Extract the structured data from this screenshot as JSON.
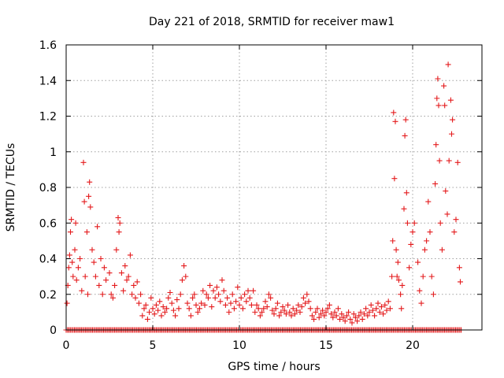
{
  "chart_data": {
    "type": "scatter",
    "title": "Day 221 of 2018, SRMTID for receiver maw1",
    "xlabel": "GPS time / hours",
    "ylabel": "SRMTID / TECUs",
    "xlim": [
      0,
      24
    ],
    "ylim": [
      0,
      1.6
    ],
    "x_ticks": [
      0,
      5,
      10,
      15,
      20
    ],
    "x_tick_labels": [
      "0",
      "5",
      "10",
      "15",
      "20"
    ],
    "y_ticks": [
      0,
      0.2,
      0.4,
      0.6,
      0.8,
      1,
      1.2,
      1.4,
      1.6
    ],
    "y_tick_labels": [
      "0",
      "0.2",
      "0.4",
      "0.6",
      "0.8",
      "1",
      "1.2",
      "1.4",
      "1.6"
    ],
    "grid": true,
    "marker": "plus",
    "series_color": "#e41a1c",
    "series": [
      {
        "name": "SRMTID",
        "note": "approximate sampled points read off the plot",
        "points": [
          [
            0.05,
            0.15
          ],
          [
            0.1,
            0.25
          ],
          [
            0.15,
            0.35
          ],
          [
            0.2,
            0.42
          ],
          [
            0.25,
            0.55
          ],
          [
            0.3,
            0.62
          ],
          [
            0.35,
            0.38
          ],
          [
            0.4,
            0.3
          ],
          [
            0.5,
            0.45
          ],
          [
            0.55,
            0.6
          ],
          [
            0.6,
            0.28
          ],
          [
            0.7,
            0.35
          ],
          [
            0.8,
            0.4
          ],
          [
            0.9,
            0.22
          ],
          [
            1.0,
            0.94
          ],
          [
            1.05,
            0.72
          ],
          [
            1.1,
            0.3
          ],
          [
            1.2,
            0.55
          ],
          [
            1.25,
            0.2
          ],
          [
            1.3,
            0.75
          ],
          [
            1.35,
            0.83
          ],
          [
            1.4,
            0.69
          ],
          [
            1.5,
            0.45
          ],
          [
            1.6,
            0.38
          ],
          [
            1.7,
            0.3
          ],
          [
            1.8,
            0.58
          ],
          [
            1.9,
            0.25
          ],
          [
            2.0,
            0.4
          ],
          [
            2.1,
            0.2
          ],
          [
            2.2,
            0.35
          ],
          [
            2.3,
            0.28
          ],
          [
            2.5,
            0.32
          ],
          [
            2.6,
            0.2
          ],
          [
            2.7,
            0.18
          ],
          [
            2.8,
            0.25
          ],
          [
            2.9,
            0.45
          ],
          [
            3.0,
            0.63
          ],
          [
            3.05,
            0.55
          ],
          [
            3.1,
            0.6
          ],
          [
            3.2,
            0.32
          ],
          [
            3.3,
            0.22
          ],
          [
            3.4,
            0.36
          ],
          [
            3.5,
            0.28
          ],
          [
            3.6,
            0.3
          ],
          [
            3.7,
            0.42
          ],
          [
            3.8,
            0.2
          ],
          [
            3.9,
            0.25
          ],
          [
            4.0,
            0.18
          ],
          [
            4.1,
            0.27
          ],
          [
            4.2,
            0.15
          ],
          [
            4.3,
            0.2
          ],
          [
            4.4,
            0.08
          ],
          [
            4.5,
            0.12
          ],
          [
            4.6,
            0.14
          ],
          [
            4.7,
            0.06
          ],
          [
            4.8,
            0.1
          ],
          [
            4.9,
            0.18
          ],
          [
            5.0,
            0.12
          ],
          [
            5.1,
            0.09
          ],
          [
            5.2,
            0.14
          ],
          [
            5.3,
            0.11
          ],
          [
            5.4,
            0.16
          ],
          [
            5.5,
            0.08
          ],
          [
            5.6,
            0.13
          ],
          [
            5.7,
            0.1
          ],
          [
            5.8,
            0.12
          ],
          [
            5.9,
            0.18
          ],
          [
            6.0,
            0.21
          ],
          [
            6.1,
            0.15
          ],
          [
            6.2,
            0.11
          ],
          [
            6.3,
            0.08
          ],
          [
            6.4,
            0.17
          ],
          [
            6.5,
            0.12
          ],
          [
            6.6,
            0.2
          ],
          [
            6.7,
            0.28
          ],
          [
            6.8,
            0.36
          ],
          [
            6.9,
            0.3
          ],
          [
            7.0,
            0.15
          ],
          [
            7.1,
            0.12
          ],
          [
            7.2,
            0.08
          ],
          [
            7.3,
            0.18
          ],
          [
            7.4,
            0.2
          ],
          [
            7.5,
            0.14
          ],
          [
            7.6,
            0.1
          ],
          [
            7.7,
            0.12
          ],
          [
            7.8,
            0.15
          ],
          [
            7.9,
            0.22
          ],
          [
            8.0,
            0.14
          ],
          [
            8.1,
            0.2
          ],
          [
            8.2,
            0.18
          ],
          [
            8.3,
            0.25
          ],
          [
            8.4,
            0.13
          ],
          [
            8.5,
            0.22
          ],
          [
            8.6,
            0.18
          ],
          [
            8.7,
            0.24
          ],
          [
            8.8,
            0.2
          ],
          [
            8.9,
            0.16
          ],
          [
            9.0,
            0.28
          ],
          [
            9.1,
            0.22
          ],
          [
            9.2,
            0.14
          ],
          [
            9.3,
            0.18
          ],
          [
            9.4,
            0.1
          ],
          [
            9.5,
            0.15
          ],
          [
            9.6,
            0.2
          ],
          [
            9.7,
            0.12
          ],
          [
            9.8,
            0.16
          ],
          [
            9.9,
            0.24
          ],
          [
            10.0,
            0.14
          ],
          [
            10.1,
            0.18
          ],
          [
            10.2,
            0.12
          ],
          [
            10.3,
            0.2
          ],
          [
            10.4,
            0.16
          ],
          [
            10.5,
            0.22
          ],
          [
            10.6,
            0.18
          ],
          [
            10.7,
            0.14
          ],
          [
            10.8,
            0.22
          ],
          [
            10.9,
            0.1
          ],
          [
            11.0,
            0.14
          ],
          [
            11.1,
            0.12
          ],
          [
            11.2,
            0.08
          ],
          [
            11.3,
            0.1
          ],
          [
            11.4,
            0.12
          ],
          [
            11.5,
            0.16
          ],
          [
            11.6,
            0.13
          ],
          [
            11.7,
            0.2
          ],
          [
            11.8,
            0.18
          ],
          [
            11.9,
            0.11
          ],
          [
            12.0,
            0.09
          ],
          [
            12.1,
            0.12
          ],
          [
            12.2,
            0.15
          ],
          [
            12.3,
            0.08
          ],
          [
            12.4,
            0.1
          ],
          [
            12.5,
            0.13
          ],
          [
            12.6,
            0.11
          ],
          [
            12.7,
            0.09
          ],
          [
            12.8,
            0.14
          ],
          [
            12.9,
            0.1
          ],
          [
            13.0,
            0.08
          ],
          [
            13.1,
            0.12
          ],
          [
            13.2,
            0.09
          ],
          [
            13.3,
            0.11
          ],
          [
            13.4,
            0.14
          ],
          [
            13.5,
            0.1
          ],
          [
            13.6,
            0.13
          ],
          [
            13.7,
            0.18
          ],
          [
            13.8,
            0.15
          ],
          [
            13.9,
            0.2
          ],
          [
            14.0,
            0.16
          ],
          [
            14.1,
            0.12
          ],
          [
            14.2,
            0.08
          ],
          [
            14.3,
            0.06
          ],
          [
            14.4,
            0.1
          ],
          [
            14.5,
            0.12
          ],
          [
            14.6,
            0.07
          ],
          [
            14.7,
            0.09
          ],
          [
            14.8,
            0.11
          ],
          [
            14.9,
            0.08
          ],
          [
            15.0,
            0.1
          ],
          [
            15.1,
            0.12
          ],
          [
            15.2,
            0.14
          ],
          [
            15.3,
            0.09
          ],
          [
            15.4,
            0.07
          ],
          [
            15.5,
            0.1
          ],
          [
            15.6,
            0.08
          ],
          [
            15.7,
            0.12
          ],
          [
            15.8,
            0.06
          ],
          [
            15.9,
            0.09
          ],
          [
            16.0,
            0.07
          ],
          [
            16.1,
            0.05
          ],
          [
            16.2,
            0.08
          ],
          [
            16.3,
            0.1
          ],
          [
            16.4,
            0.06
          ],
          [
            16.5,
            0.04
          ],
          [
            16.6,
            0.09
          ],
          [
            16.7,
            0.07
          ],
          [
            16.8,
            0.05
          ],
          [
            16.9,
            0.08
          ],
          [
            17.0,
            0.1
          ],
          [
            17.1,
            0.06
          ],
          [
            17.2,
            0.09
          ],
          [
            17.3,
            0.12
          ],
          [
            17.4,
            0.08
          ],
          [
            17.5,
            0.1
          ],
          [
            17.6,
            0.14
          ],
          [
            17.7,
            0.11
          ],
          [
            17.8,
            0.08
          ],
          [
            17.9,
            0.12
          ],
          [
            18.0,
            0.15
          ],
          [
            18.1,
            0.1
          ],
          [
            18.2,
            0.13
          ],
          [
            18.3,
            0.09
          ],
          [
            18.4,
            0.14
          ],
          [
            18.5,
            0.11
          ],
          [
            18.6,
            0.16
          ],
          [
            18.7,
            0.12
          ],
          [
            18.8,
            0.3
          ],
          [
            18.85,
            0.5
          ],
          [
            18.9,
            1.22
          ],
          [
            18.95,
            0.85
          ],
          [
            19.0,
            1.17
          ],
          [
            19.05,
            0.45
          ],
          [
            19.1,
            0.3
          ],
          [
            19.15,
            0.38
          ],
          [
            19.2,
            0.28
          ],
          [
            19.3,
            0.2
          ],
          [
            19.35,
            0.12
          ],
          [
            19.4,
            0.25
          ],
          [
            19.5,
            0.68
          ],
          [
            19.55,
            1.09
          ],
          [
            19.6,
            1.18
          ],
          [
            19.65,
            0.77
          ],
          [
            19.7,
            0.6
          ],
          [
            19.8,
            0.35
          ],
          [
            19.9,
            0.48
          ],
          [
            20.0,
            0.55
          ],
          [
            20.1,
            0.6
          ],
          [
            20.3,
            0.38
          ],
          [
            20.4,
            0.22
          ],
          [
            20.5,
            0.15
          ],
          [
            20.6,
            0.3
          ],
          [
            20.7,
            0.45
          ],
          [
            20.8,
            0.5
          ],
          [
            20.9,
            0.72
          ],
          [
            21.0,
            0.55
          ],
          [
            21.1,
            0.3
          ],
          [
            21.2,
            0.2
          ],
          [
            21.3,
            0.82
          ],
          [
            21.35,
            1.04
          ],
          [
            21.4,
            1.3
          ],
          [
            21.45,
            1.41
          ],
          [
            21.5,
            1.26
          ],
          [
            21.55,
            0.95
          ],
          [
            21.6,
            0.6
          ],
          [
            21.7,
            0.45
          ],
          [
            21.8,
            1.37
          ],
          [
            21.85,
            1.26
          ],
          [
            21.9,
            0.78
          ],
          [
            22.0,
            0.65
          ],
          [
            22.05,
            1.49
          ],
          [
            22.1,
            0.95
          ],
          [
            22.2,
            1.29
          ],
          [
            22.25,
            1.1
          ],
          [
            22.3,
            1.18
          ],
          [
            22.4,
            0.55
          ],
          [
            22.5,
            0.62
          ],
          [
            22.6,
            0.94
          ],
          [
            22.7,
            0.35
          ],
          [
            22.75,
            0.27
          ]
        ]
      }
    ],
    "baseline_rug": {
      "y": 0,
      "x_range": [
        0,
        22.8
      ],
      "description": "dense row of markers at y = 0"
    }
  }
}
